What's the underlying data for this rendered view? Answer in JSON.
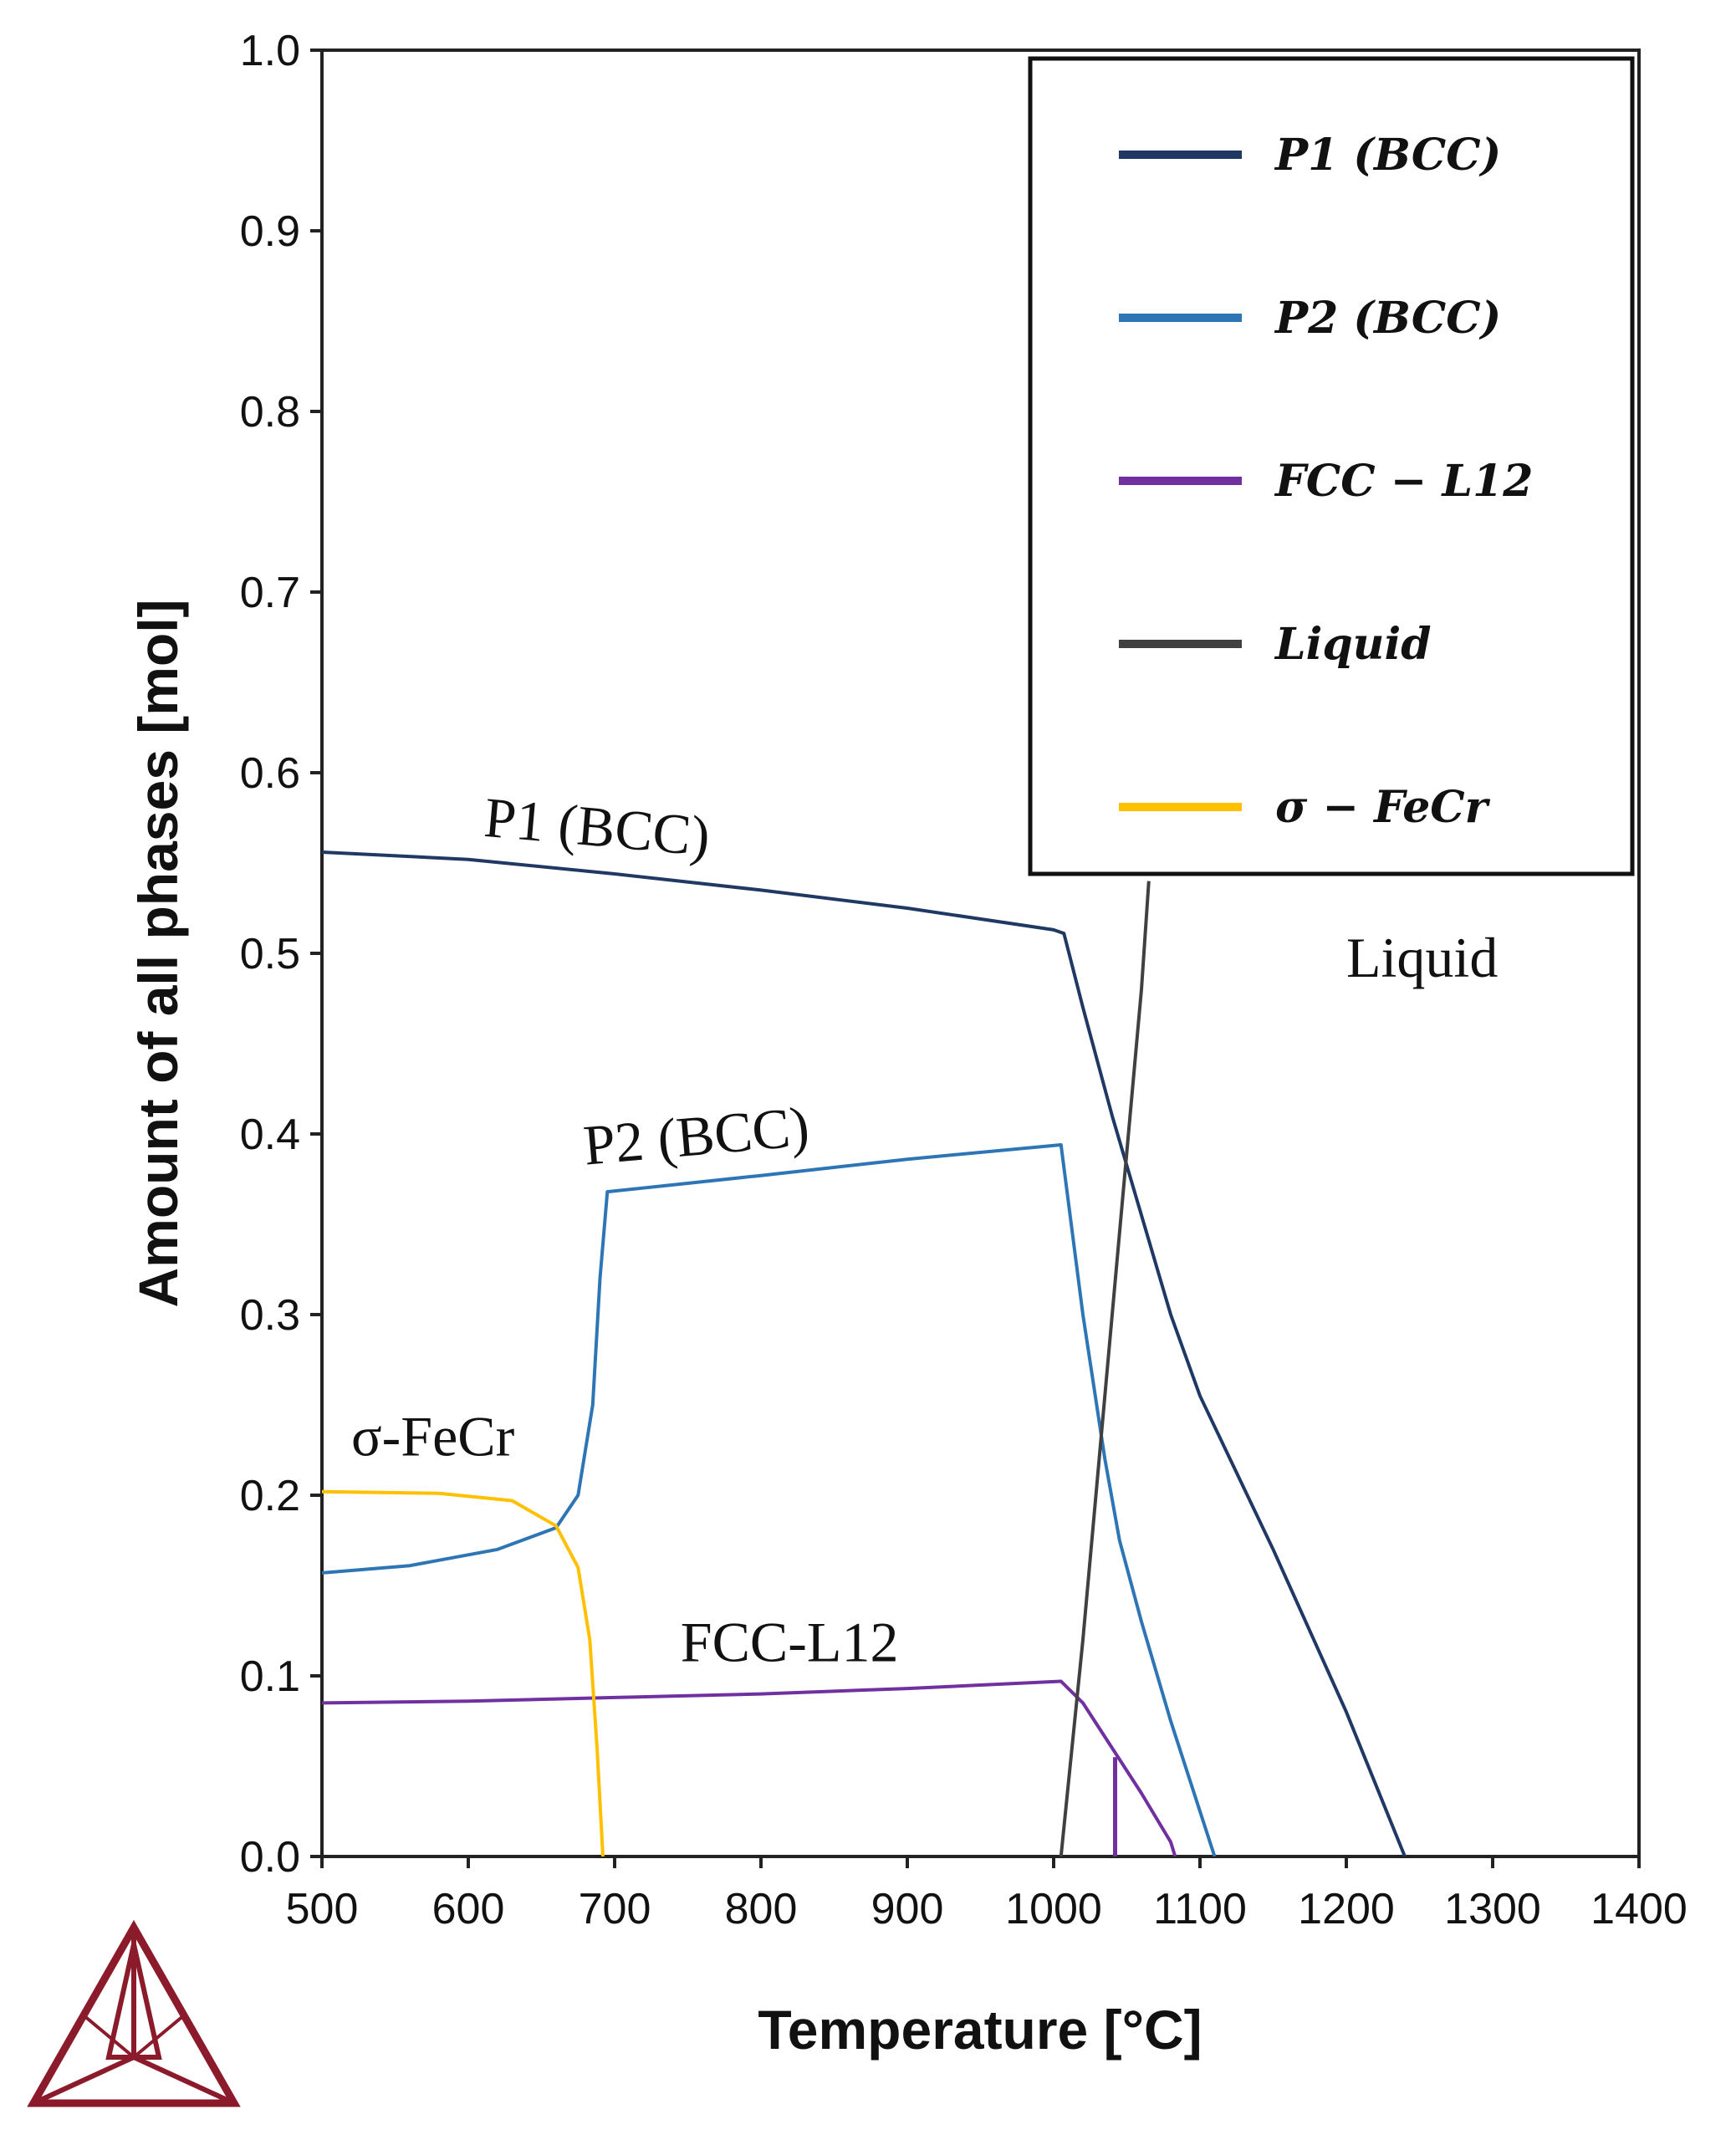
{
  "chart_data": {
    "type": "line",
    "title": "",
    "xlabel": "Temperature [°C]",
    "ylabel": "Amount of all phases [mol]",
    "xlim": [
      500,
      1400
    ],
    "ylim": [
      0.0,
      1.0
    ],
    "xticks": [
      "500",
      "600",
      "700",
      "800",
      "900",
      "1000",
      "1100",
      "1200",
      "1300",
      "1400"
    ],
    "yticks": [
      "0.0",
      "0.1",
      "0.2",
      "0.3",
      "0.4",
      "0.5",
      "0.6",
      "0.7",
      "0.8",
      "0.9",
      "1.0"
    ],
    "grid": false,
    "legend_position": "top-right",
    "legend": [
      {
        "label": "P1 (BCC)",
        "color": "#1f3864"
      },
      {
        "label": "P2 (BCC)",
        "color": "#2e75b6"
      },
      {
        "label": "FCC − L12",
        "color": "#7030a0"
      },
      {
        "label": "Liquid",
        "color": "#404040"
      },
      {
        "label": "σ − FeCr",
        "color": "#ffc000"
      }
    ],
    "series": [
      {
        "key": "p1",
        "color": "#1f3864",
        "points": [
          [
            500,
            0.556
          ],
          [
            600,
            0.552
          ],
          [
            700,
            0.544
          ],
          [
            800,
            0.535
          ],
          [
            900,
            0.525
          ],
          [
            1000,
            0.513
          ],
          [
            1007,
            0.511
          ],
          [
            1020,
            0.47
          ],
          [
            1040,
            0.41
          ],
          [
            1060,
            0.355
          ],
          [
            1080,
            0.3
          ],
          [
            1100,
            0.255
          ],
          [
            1150,
            0.17
          ],
          [
            1200,
            0.08
          ],
          [
            1240,
            0.0
          ]
        ]
      },
      {
        "key": "p2",
        "color": "#2e75b6",
        "points": [
          [
            500,
            0.157
          ],
          [
            560,
            0.161
          ],
          [
            620,
            0.17
          ],
          [
            660,
            0.182
          ],
          [
            675,
            0.2
          ],
          [
            685,
            0.25
          ],
          [
            690,
            0.32
          ],
          [
            695,
            0.368
          ],
          [
            800,
            0.377
          ],
          [
            900,
            0.386
          ],
          [
            1005,
            0.394
          ],
          [
            1020,
            0.3
          ],
          [
            1035,
            0.22
          ],
          [
            1045,
            0.175
          ],
          [
            1060,
            0.13
          ],
          [
            1080,
            0.075
          ],
          [
            1100,
            0.025
          ],
          [
            1110,
            0.0
          ]
        ]
      },
      {
        "key": "fcc",
        "color": "#7030a0",
        "points": [
          [
            500,
            0.085
          ],
          [
            600,
            0.086
          ],
          [
            700,
            0.088
          ],
          [
            800,
            0.09
          ],
          [
            900,
            0.093
          ],
          [
            1005,
            0.097
          ],
          [
            1020,
            0.085
          ],
          [
            1040,
            0.06
          ],
          [
            1060,
            0.035
          ],
          [
            1080,
            0.008
          ],
          [
            1083,
            0.0
          ]
        ]
      },
      {
        "key": "liquid",
        "color": "#404040",
        "points": [
          [
            1005,
            0.0
          ],
          [
            1020,
            0.12
          ],
          [
            1040,
            0.3
          ],
          [
            1060,
            0.48
          ],
          [
            1065,
            0.54
          ]
        ]
      },
      {
        "key": "sigma",
        "color": "#ffc000",
        "points": [
          [
            500,
            0.202
          ],
          [
            580,
            0.201
          ],
          [
            630,
            0.197
          ],
          [
            660,
            0.183
          ],
          [
            675,
            0.16
          ],
          [
            683,
            0.12
          ],
          [
            688,
            0.06
          ],
          [
            692,
            0.0
          ]
        ]
      }
    ],
    "vertical_segments": [
      {
        "color": "#7030a0",
        "x": 1042,
        "y0": 0.0,
        "y1": 0.055
      }
    ],
    "annotations": [
      {
        "text": "P1 (BCC)",
        "x": 610,
        "y": 0.565,
        "rotate": 5
      },
      {
        "text": "P2 (BCC)",
        "x": 680,
        "y": 0.383,
        "rotate": -5
      },
      {
        "text": "Liquid",
        "x": 1200,
        "y": 0.487,
        "rotate": 0
      },
      {
        "text": "σ-FeCr",
        "x": 520,
        "y": 0.222,
        "rotate": 0
      },
      {
        "text": "FCC-L12",
        "x": 745,
        "y": 0.108,
        "rotate": 0
      }
    ]
  },
  "logo": {
    "name": "thermo-calc-logo",
    "color": "#8b1a2b"
  }
}
